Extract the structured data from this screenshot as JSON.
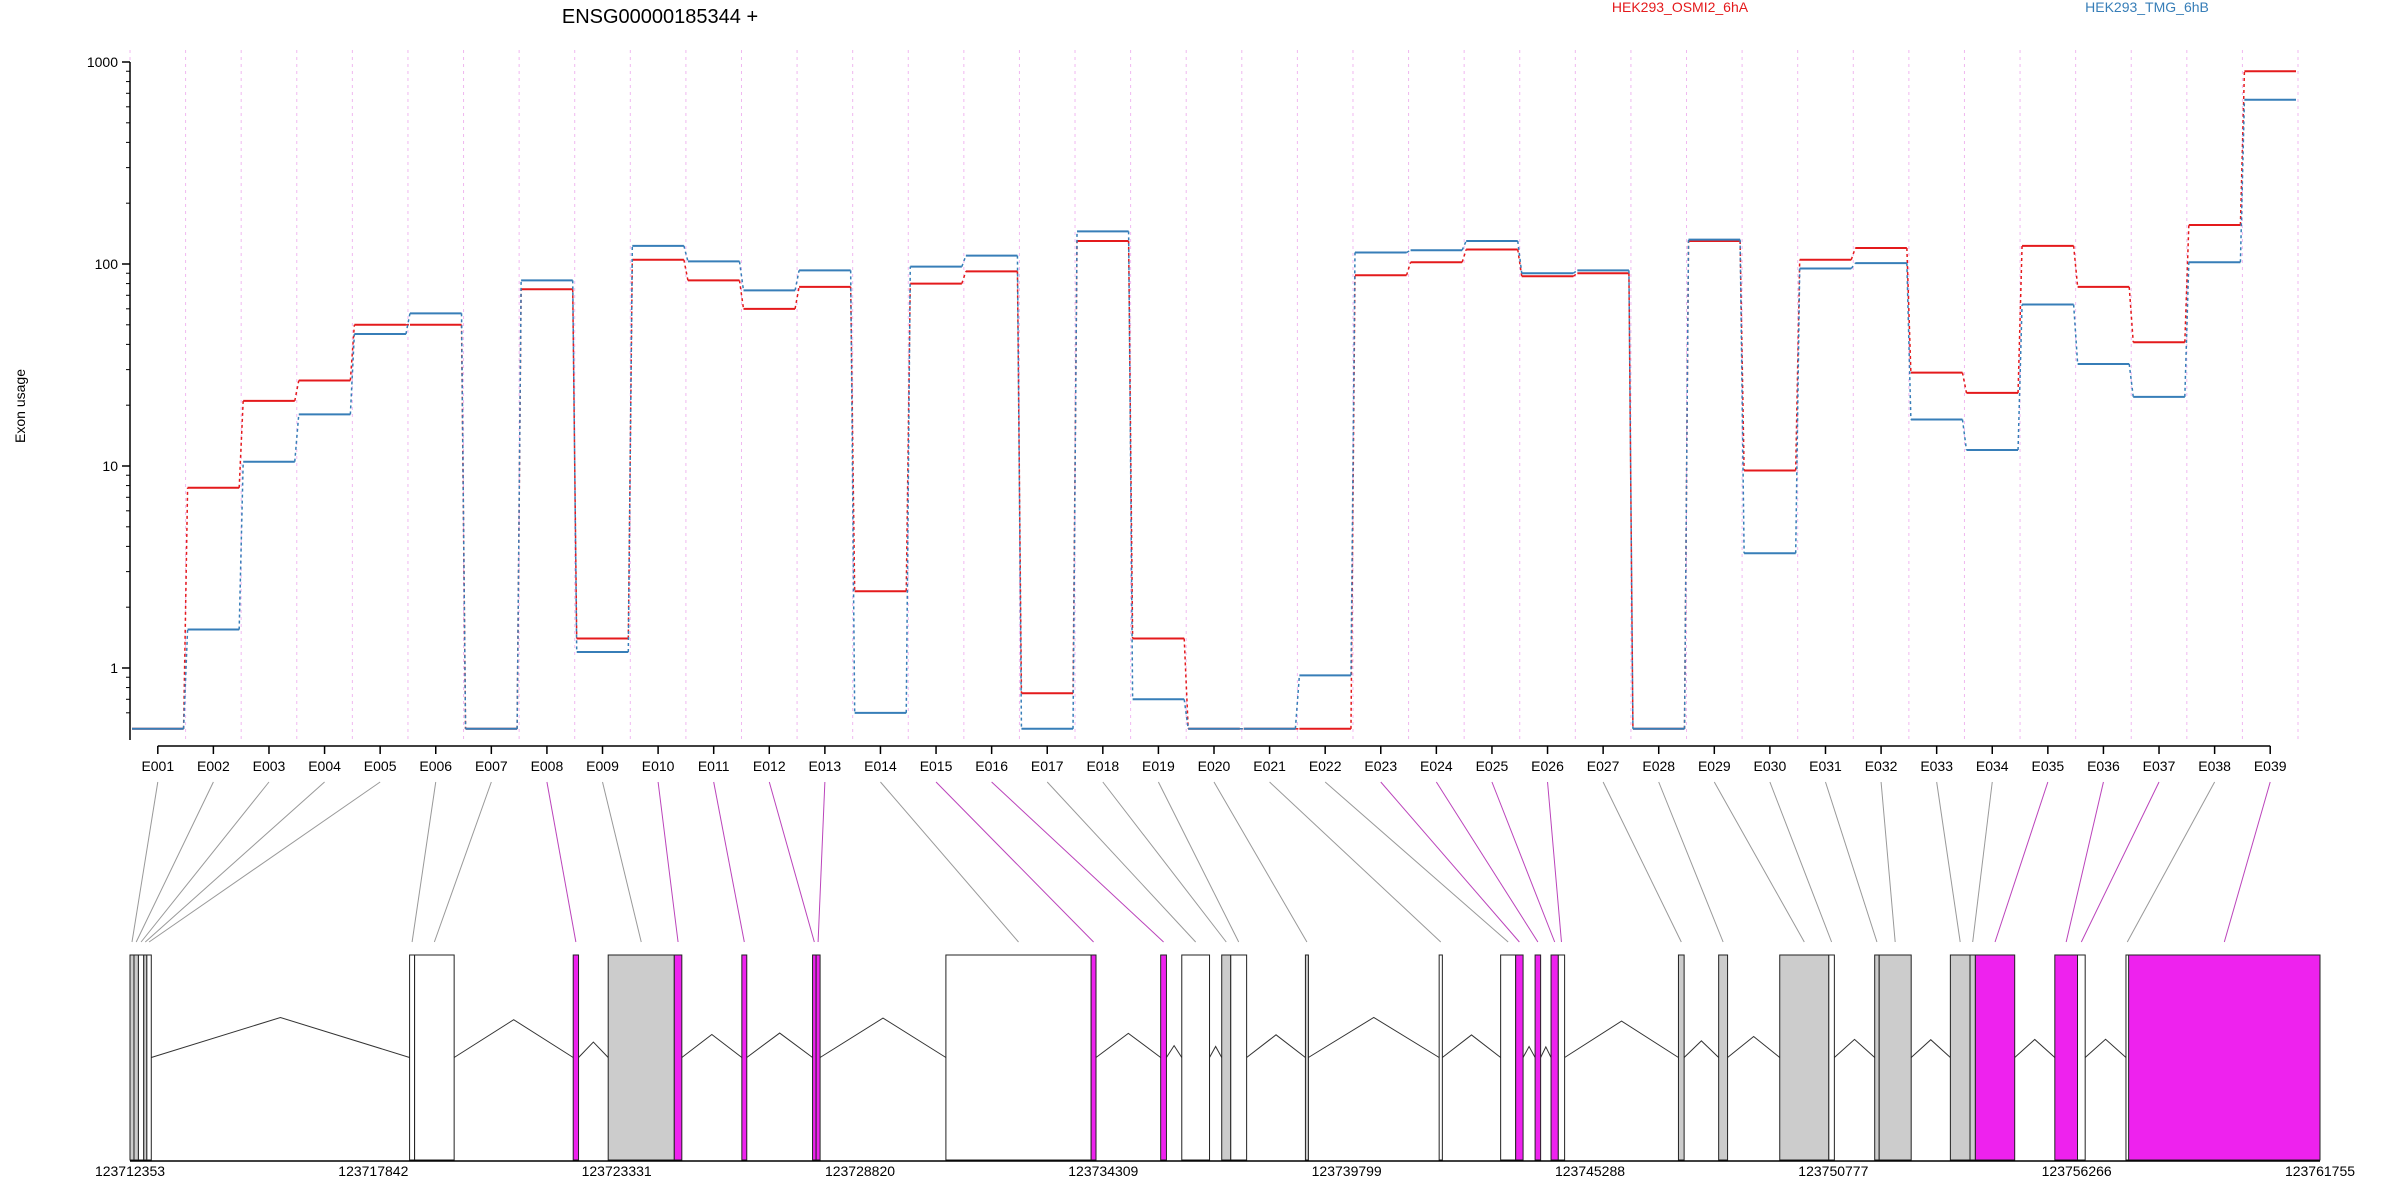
{
  "title": "ENSG00000185344 +",
  "ylabel": "Exon usage",
  "colors": {
    "series_a": "#e41a1c",
    "series_b": "#377eb8",
    "gridline": "#f0b8f0",
    "exon_highlight": "#ee22ee",
    "exon_grey": "#cccccc",
    "connector_grey": "#999999",
    "connector_highlight": "#bb44bb"
  },
  "chart_data": {
    "type": "line",
    "yscale": "log",
    "ylim": [
      0.5,
      1000
    ],
    "yticks": [
      "1000",
      "100",
      "10",
      "1"
    ],
    "categories": [
      "E001",
      "E002",
      "E003",
      "E004",
      "E005",
      "E006",
      "E007",
      "E008",
      "E009",
      "E010",
      "E011",
      "E012",
      "E013",
      "E014",
      "E015",
      "E016",
      "E017",
      "E018",
      "E019",
      "E020",
      "E021",
      "E022",
      "E023",
      "E024",
      "E025",
      "E026",
      "E027",
      "E028",
      "E029",
      "E030",
      "E031",
      "E032",
      "E033",
      "E034",
      "E035",
      "E036",
      "E037",
      "E038",
      "E039"
    ],
    "series": [
      {
        "name": "HEK293_OSMI2_6hA",
        "color": "#e41a1c",
        "values": [
          0.5,
          7.8,
          21,
          26.5,
          50,
          50,
          0.5,
          75,
          1.4,
          105,
          83,
          60,
          77,
          2.4,
          80,
          92,
          0.75,
          130,
          1.4,
          0.5,
          0.5,
          0.5,
          88,
          102,
          118,
          87,
          90,
          0.5,
          130,
          9.5,
          105,
          120,
          29,
          23,
          123,
          77,
          41,
          156,
          900
        ]
      },
      {
        "name": "HEK293_TMG_6hB",
        "color": "#377eb8",
        "values": [
          0.5,
          1.55,
          10.5,
          18,
          45,
          57,
          0.5,
          83,
          1.2,
          123,
          103,
          74,
          93,
          0.6,
          97,
          110,
          0.5,
          145,
          0.7,
          0.5,
          0.5,
          0.92,
          114,
          117,
          130,
          90,
          93,
          0.5,
          132,
          3.7,
          95,
          101,
          17,
          12,
          63,
          32,
          22,
          102,
          650
        ]
      }
    ],
    "exon_highlight": [
      false,
      false,
      false,
      false,
      false,
      false,
      false,
      true,
      false,
      true,
      true,
      true,
      true,
      false,
      true,
      true,
      false,
      false,
      false,
      false,
      false,
      false,
      true,
      true,
      true,
      true,
      false,
      false,
      false,
      false,
      false,
      false,
      false,
      false,
      true,
      true,
      true,
      false,
      true
    ],
    "gene_axis": {
      "start": 123712353,
      "end": 123761755,
      "tick_labels": [
        "123712353",
        "123717842",
        "123723331",
        "123728820",
        "123734309",
        "123739799",
        "123745288",
        "123750777",
        "123756266",
        "123761755"
      ]
    },
    "exons_genomic": [
      {
        "start": 123712353,
        "end": 123712443,
        "fill": "grey"
      },
      {
        "start": 123712443,
        "end": 123712543,
        "fill": "grey"
      },
      {
        "start": 123712543,
        "end": 123712663,
        "fill": "none"
      },
      {
        "start": 123712663,
        "end": 123712733,
        "fill": "grey"
      },
      {
        "start": 123712733,
        "end": 123712833,
        "fill": "none"
      },
      {
        "start": 123718660,
        "end": 123718773,
        "fill": "none"
      },
      {
        "start": 123718773,
        "end": 123719665,
        "fill": "none"
      },
      {
        "start": 123722351,
        "end": 123722471,
        "fill": "magenta"
      },
      {
        "start": 123723140,
        "end": 123724631,
        "fill": "grey"
      },
      {
        "start": 123724631,
        "end": 123724801,
        "fill": "magenta"
      },
      {
        "start": 123726155,
        "end": 123726266,
        "fill": "magenta"
      },
      {
        "start": 123727750,
        "end": 123727830,
        "fill": "magenta"
      },
      {
        "start": 123727830,
        "end": 123727920,
        "fill": "magenta"
      },
      {
        "start": 123730758,
        "end": 123734034,
        "fill": "none"
      },
      {
        "start": 123734034,
        "end": 123734144,
        "fill": "magenta"
      },
      {
        "start": 123735603,
        "end": 123735733,
        "fill": "magenta"
      },
      {
        "start": 123736079,
        "end": 123736705,
        "fill": "none"
      },
      {
        "start": 123736980,
        "end": 123737184,
        "fill": "grey"
      },
      {
        "start": 123737184,
        "end": 123737542,
        "fill": "none"
      },
      {
        "start": 123738868,
        "end": 123738935,
        "fill": "grey"
      },
      {
        "start": 123741885,
        "end": 123741957,
        "fill": "none"
      },
      {
        "start": 123743272,
        "end": 123743611,
        "fill": "none"
      },
      {
        "start": 123743611,
        "end": 123743778,
        "fill": "magenta"
      },
      {
        "start": 123744049,
        "end": 123744174,
        "fill": "magenta"
      },
      {
        "start": 123744409,
        "end": 123744573,
        "fill": "magenta"
      },
      {
        "start": 123744573,
        "end": 123744715,
        "fill": "none"
      },
      {
        "start": 123747283,
        "end": 123747411,
        "fill": "grey"
      },
      {
        "start": 123748190,
        "end": 123748391,
        "fill": "grey"
      },
      {
        "start": 123749568,
        "end": 123750675,
        "fill": "grey"
      },
      {
        "start": 123750675,
        "end": 123750800,
        "fill": "none"
      },
      {
        "start": 123751710,
        "end": 123751811,
        "fill": "grey"
      },
      {
        "start": 123751811,
        "end": 123752533,
        "fill": "grey"
      },
      {
        "start": 123753417,
        "end": 123753860,
        "fill": "grey"
      },
      {
        "start": 123753860,
        "end": 123753981,
        "fill": "grey"
      },
      {
        "start": 123753981,
        "end": 123754868,
        "fill": "magenta"
      },
      {
        "start": 123755773,
        "end": 123756285,
        "fill": "magenta"
      },
      {
        "start": 123756285,
        "end": 123756458,
        "fill": "none"
      },
      {
        "start": 123757378,
        "end": 123757438,
        "fill": "none"
      },
      {
        "start": 123757438,
        "end": 123761755,
        "fill": "magenta"
      }
    ]
  }
}
